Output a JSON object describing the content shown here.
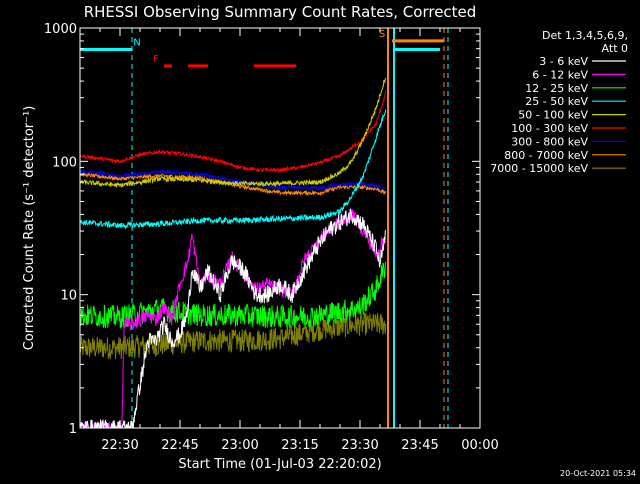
{
  "chart_data": {
    "type": "line",
    "title": "RHESSI Observing Summary Count Rates, Corrected",
    "xlabel": "Start Time (01-Jul-03 22:20:02)",
    "ylabel": "Corrected Count Rate (s⁻¹ detector⁻¹)",
    "x_unit": "minutes after 22:20:02",
    "xlim": [
      0,
      100
    ],
    "ylim": [
      1,
      1000
    ],
    "y_scale": "log",
    "y_ticks": [
      {
        "value": 1,
        "label": "1"
      },
      {
        "value": 10,
        "label": "10"
      },
      {
        "value": 100,
        "label": "100"
      },
      {
        "value": 1000,
        "label": "1000"
      }
    ],
    "x_ticks": [
      {
        "value": 10,
        "label": "22:30"
      },
      {
        "value": 25,
        "label": "22:45"
      },
      {
        "value": 40,
        "label": "23:00"
      },
      {
        "value": 55,
        "label": "23:15"
      },
      {
        "value": 70,
        "label": "23:30"
      },
      {
        "value": 85,
        "label": "23:45"
      },
      {
        "value": 100,
        "label": "00:00"
      }
    ],
    "legend": {
      "position": "right",
      "header": [
        "Det 1,3,4,5,6,9,",
        "Att 0"
      ]
    },
    "series": [
      {
        "name": "3 - 6 keV",
        "color": "#ffffff",
        "x": [
          0,
          13,
          17,
          19,
          21,
          23,
          25,
          27,
          28,
          30,
          32,
          35,
          38,
          41,
          44,
          47,
          50,
          53,
          56,
          59,
          62,
          65,
          68,
          71,
          74,
          75,
          76.5
        ],
        "y": [
          1,
          1,
          4.5,
          4.5,
          6,
          4.5,
          5,
          7.5,
          16,
          11,
          15,
          10,
          18,
          15,
          10,
          10,
          12,
          10,
          15,
          22,
          30,
          35,
          40,
          33,
          22,
          17,
          28
        ],
        "noise": 0.15
      },
      {
        "name": "6 - 12 keV",
        "color": "#ff00ff",
        "x": [
          0,
          10.5,
          11,
          13,
          17,
          19,
          21,
          23,
          25,
          27,
          28,
          30,
          32,
          35,
          38,
          41,
          44,
          47,
          50,
          53,
          56,
          59,
          62,
          65,
          68,
          71,
          74,
          76.5
        ],
        "y": [
          1,
          1,
          6,
          6,
          7,
          6.5,
          8,
          6.5,
          12,
          18,
          28,
          12,
          14,
          12,
          19,
          14,
          11,
          12,
          11,
          10,
          18,
          24,
          30,
          35,
          40,
          30,
          20,
          28
        ],
        "noise": 0.12
      },
      {
        "name": "12 - 25 keV",
        "color": "#00ff00",
        "x": [
          0,
          10,
          20,
          30,
          40,
          50,
          60,
          70,
          74,
          76.5
        ],
        "y": [
          7,
          6.8,
          7.8,
          7,
          7,
          6.8,
          7,
          8,
          11,
          17
        ],
        "noise": 0.2
      },
      {
        "name": "25 - 50 keV",
        "color": "#00ffff",
        "x": [
          0,
          10,
          20,
          30,
          40,
          50,
          60,
          65,
          68,
          71,
          74,
          76.5
        ],
        "y": [
          35,
          33,
          34,
          36,
          36,
          37,
          38,
          42,
          55,
          80,
          150,
          250
        ],
        "noise": 0.05
      },
      {
        "name": "50 - 100 keV",
        "color": "#cccc00",
        "x": [
          0,
          10,
          20,
          30,
          40,
          50,
          60,
          65,
          68,
          71,
          74,
          76.5
        ],
        "y": [
          70,
          66,
          74,
          72,
          68,
          68,
          70,
          82,
          100,
          150,
          250,
          440
        ],
        "noise": 0.04
      },
      {
        "name": "100 - 300 keV",
        "color": "#ff0000",
        "x": [
          0,
          10,
          15,
          20,
          25,
          30,
          35,
          40,
          45,
          50,
          55,
          60,
          65,
          70,
          74,
          76.5
        ],
        "y": [
          110,
          100,
          112,
          118,
          114,
          108,
          100,
          90,
          86,
          86,
          90,
          98,
          110,
          140,
          190,
          330
        ],
        "noise": 0.03
      },
      {
        "name": "300 - 800 keV",
        "color": "#0000ff",
        "x": [
          0,
          10,
          20,
          30,
          40,
          50,
          60,
          65,
          70,
          74,
          76.5
        ],
        "y": [
          84,
          78,
          84,
          80,
          70,
          64,
          63,
          67,
          68,
          66,
          62
        ],
        "noise": 0.03
      },
      {
        "name": "800 - 7000 keV",
        "color": "#ff8800",
        "x": [
          0,
          10,
          20,
          30,
          40,
          50,
          60,
          65,
          70,
          74,
          76.5
        ],
        "y": [
          80,
          74,
          78,
          75,
          65,
          58,
          58,
          64,
          64,
          62,
          58
        ],
        "noise": 0.03
      },
      {
        "name": "7000 - 15000 keV",
        "color": "#808000",
        "x": [
          0,
          10,
          20,
          30,
          40,
          50,
          60,
          70,
          74,
          76.5
        ],
        "y": [
          4,
          4,
          4.2,
          4.5,
          4.5,
          4.7,
          5.5,
          6,
          6,
          6
        ],
        "noise": 0.2
      }
    ],
    "annotations": [
      {
        "type": "segments",
        "label": "N",
        "color": "#00ffff",
        "y": 690,
        "ranges": [
          [
            0,
            13
          ],
          [
            78.5,
            90
          ]
        ]
      },
      {
        "type": "segments",
        "label": "F",
        "color": "#ff0000",
        "y": 520,
        "ranges": [
          [
            21,
            23
          ],
          [
            27,
            32
          ],
          [
            43.5,
            54
          ]
        ]
      },
      {
        "type": "segments",
        "label": "S",
        "color": "#ff8800",
        "y": 800,
        "ranges": [
          [
            78,
            91
          ]
        ]
      },
      {
        "type": "vline",
        "color": "#00ffff",
        "style": "dashed",
        "x": 13
      },
      {
        "type": "vline",
        "color": "#00ffff",
        "style": "solid",
        "x": 78.5
      },
      {
        "type": "vline",
        "color": "#00ffff",
        "style": "dashed",
        "x": 92
      },
      {
        "type": "vline",
        "color": "#ff8800",
        "style": "solid",
        "x": 77
      },
      {
        "type": "vline",
        "color": "#ff8800",
        "style": "dashed",
        "x": 91
      }
    ]
  },
  "footer": {
    "timestamp": "20-Oct-2021 05:34"
  }
}
